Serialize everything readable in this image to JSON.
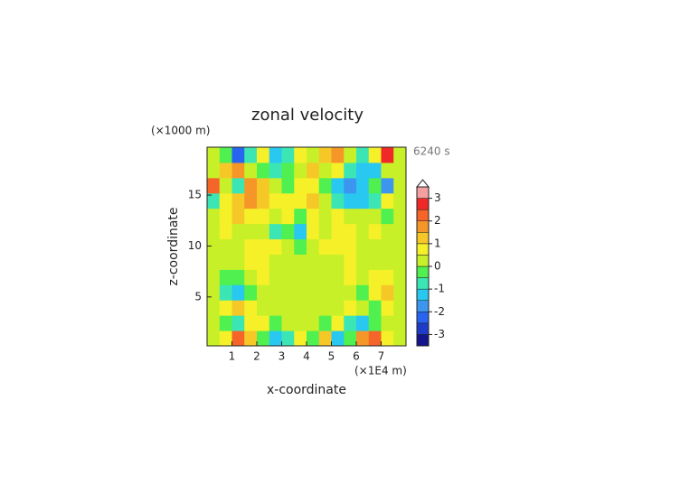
{
  "chart_data": {
    "type": "contour",
    "title": "zonal velocity",
    "xlabel": "x-coordinate",
    "ylabel": "z-coordinate",
    "xunit": "(×1E4 m)",
    "yunit": "(×1000 m)",
    "annotation": "6240 s",
    "xlim": [
      0,
      8
    ],
    "ylim": [
      0.2,
      19.7
    ],
    "xticks": [
      1,
      2,
      3,
      4,
      5,
      6,
      7
    ],
    "yticks": [
      5,
      10,
      15
    ],
    "x": [
      0.25,
      0.75,
      1.25,
      1.75,
      2.25,
      2.75,
      3.25,
      3.75,
      4.25,
      4.75,
      5.25,
      5.75,
      6.25,
      6.75,
      7.25,
      7.75
    ],
    "y": [
      0.95,
      2.45,
      3.95,
      5.45,
      6.95,
      8.45,
      9.95,
      11.45,
      12.95,
      14.45,
      15.95,
      17.45,
      18.95
    ],
    "z": [
      [
        0.3,
        0.8,
        2.0,
        1.0,
        -0.5,
        -1.5,
        -1.0,
        0.5,
        -0.5,
        1.0,
        -1.5,
        -0.5,
        1.5,
        2.2,
        0.8,
        0.3
      ],
      [
        0.2,
        -0.3,
        -0.8,
        0.5,
        0.8,
        -0.3,
        0.3,
        0.2,
        0.3,
        -0.5,
        0.5,
        -0.8,
        -1.2,
        -0.3,
        0.3,
        0.2
      ],
      [
        0.3,
        0.8,
        1.2,
        0.6,
        0.2,
        0.4,
        0.1,
        0.2,
        0.2,
        0.1,
        0.4,
        0.8,
        0.2,
        -0.2,
        0.6,
        0.3
      ],
      [
        0.1,
        -0.6,
        -1.2,
        -0.3,
        0.2,
        0.1,
        0.3,
        0.1,
        0.2,
        0.3,
        0.2,
        0.4,
        -0.2,
        0.5,
        1.2,
        0.4
      ],
      [
        0.1,
        -0.3,
        -0.4,
        0.3,
        0.5,
        0.2,
        0.1,
        0.2,
        0.1,
        0.2,
        0.3,
        0.5,
        0.3,
        0.6,
        0.8,
        0.2
      ],
      [
        0.2,
        0.1,
        0.3,
        0.5,
        0.8,
        0.4,
        0.2,
        0.3,
        0.2,
        0.4,
        0.3,
        0.6,
        0.4,
        0.2,
        0.1,
        0.2
      ],
      [
        0.3,
        0.2,
        0.4,
        0.6,
        0.7,
        0.8,
        0.3,
        -0.3,
        0.4,
        0.8,
        0.9,
        0.6,
        0.4,
        0.2,
        0.3,
        0.2
      ],
      [
        0.2,
        0.6,
        0.3,
        0.2,
        0.3,
        -0.6,
        -0.3,
        -1.2,
        0.6,
        0.3,
        0.8,
        0.5,
        0.3,
        0.6,
        0.2,
        0.2
      ],
      [
        0.4,
        0.8,
        1.0,
        0.7,
        0.5,
        0.4,
        0.8,
        -0.2,
        0.9,
        0.4,
        0.6,
        0.3,
        0.2,
        0.4,
        -0.3,
        0.2
      ],
      [
        -0.8,
        0.9,
        1.2,
        1.8,
        1.4,
        0.6,
        0.7,
        0.5,
        1.0,
        0.3,
        -0.6,
        -1.4,
        -1.2,
        -0.6,
        0.5,
        0.3
      ],
      [
        2.1,
        0.4,
        -0.6,
        1.9,
        1.2,
        0.2,
        -0.4,
        0.6,
        0.8,
        -0.4,
        -1.4,
        -1.8,
        -1.2,
        -0.3,
        -1.6,
        0.2
      ],
      [
        0.3,
        1.1,
        1.6,
        0.3,
        -0.5,
        -1.0,
        -0.3,
        0.4,
        1.0,
        0.2,
        0.5,
        -0.6,
        -1.2,
        -1.4,
        0.3,
        0.2
      ],
      [
        0.2,
        -0.4,
        -2.4,
        -0.8,
        0.6,
        -1.5,
        -0.8,
        0.5,
        0.3,
        1.2,
        1.6,
        0.4,
        -0.6,
        0.8,
        2.8,
        0.4
      ]
    ],
    "levels": [
      -3.5,
      -3,
      -2.5,
      -2,
      -1.5,
      -1,
      -0.5,
      0,
      0.5,
      1,
      1.5,
      2,
      2.5,
      3,
      3.5
    ],
    "colors": [
      "#14148c",
      "#1e3cc8",
      "#2864f0",
      "#3c96f0",
      "#28c8f0",
      "#3ce6b4",
      "#50f050",
      "#c8f028",
      "#f5f028",
      "#f5c828",
      "#f59628",
      "#f56428",
      "#f02828",
      "#f5a0a0"
    ],
    "cbar_ticks": [
      -3,
      -2,
      -1,
      0,
      1,
      2,
      3
    ]
  }
}
